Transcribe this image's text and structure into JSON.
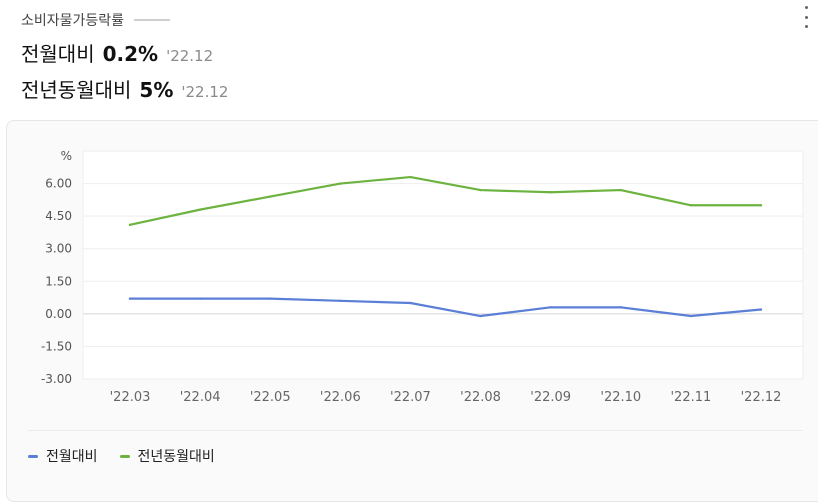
{
  "header": {
    "title": "소비자물가등락률",
    "rows": [
      {
        "label": "전월대비",
        "value": "0.2%",
        "date": "'22.12"
      },
      {
        "label": "전년동월대비",
        "value": "5%",
        "date": "'22.12"
      }
    ]
  },
  "colors": {
    "series1": "#5b7fd6",
    "series2": "#6cb33f"
  },
  "chart_data": {
    "type": "line",
    "ylabel": "%",
    "x": [
      "'22.03",
      "'22.04",
      "'22.05",
      "'22.06",
      "'22.07",
      "'22.08",
      "'22.09",
      "'22.10",
      "'22.11",
      "'22.12"
    ],
    "ylim": [
      -3.0,
      7.5
    ],
    "yticks": [
      "6.00",
      "4.50",
      "3.00",
      "1.50",
      "0.00",
      "-1.50",
      "-3.00"
    ],
    "yticks_values": [
      6.0,
      4.5,
      3.0,
      1.5,
      0.0,
      -1.5,
      -3.0
    ],
    "grid": true,
    "legend": "bottom-left",
    "series": [
      {
        "name": "전월대비",
        "color": "#5b7fd6",
        "values": [
          0.7,
          0.7,
          0.7,
          0.6,
          0.5,
          -0.1,
          0.3,
          0.3,
          -0.1,
          0.2
        ]
      },
      {
        "name": "전년동월대비",
        "color": "#6cb33f",
        "values": [
          4.1,
          4.8,
          5.4,
          6.0,
          6.3,
          5.7,
          5.6,
          5.7,
          5.0,
          5.0
        ]
      }
    ]
  }
}
